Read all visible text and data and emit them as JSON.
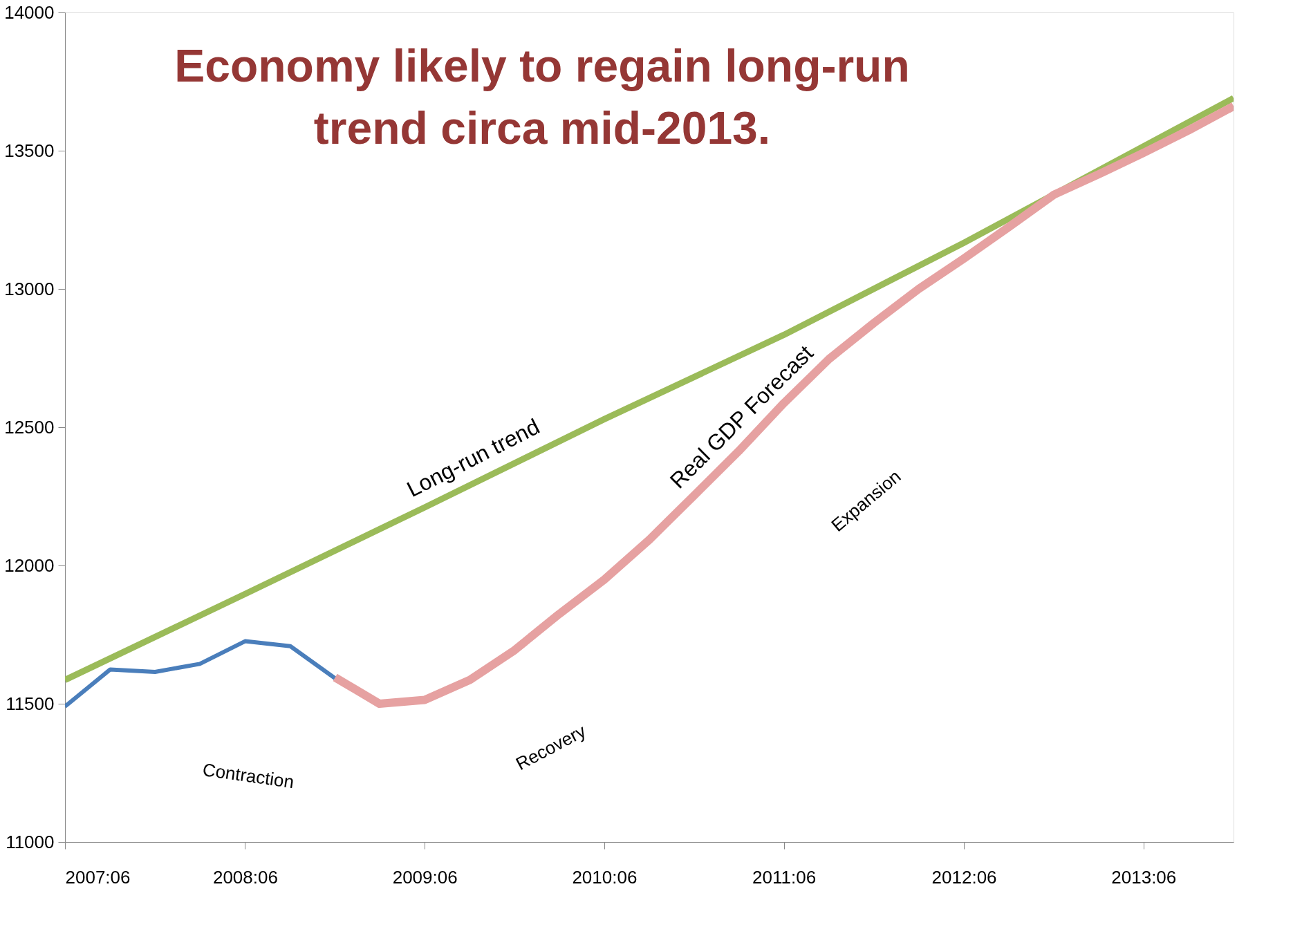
{
  "chart_data": {
    "type": "line",
    "title": "Economy likely to regain long-run\ntrend circa mid-2013.",
    "xlim": [
      "2007-06",
      "2013-12"
    ],
    "ylim": [
      11000,
      14000
    ],
    "xticks": [
      {
        "value": "2007-06",
        "label": "2007:06"
      },
      {
        "value": "2008-06",
        "label": "2008:06"
      },
      {
        "value": "2009-06",
        "label": "2009:06"
      },
      {
        "value": "2010-06",
        "label": "2010:06"
      },
      {
        "value": "2011-06",
        "label": "2011:06"
      },
      {
        "value": "2012-06",
        "label": "2012:06"
      },
      {
        "value": "2013-06",
        "label": "2013:06"
      }
    ],
    "yticks": [
      11000,
      11500,
      12000,
      12500,
      13000,
      13500,
      14000
    ],
    "series": [
      {
        "name": "Long-run trend",
        "color": "#9bbb59",
        "x": [
          "2007-06",
          "2008-06",
          "2009-06",
          "2010-06",
          "2011-06",
          "2012-06",
          "2013-06",
          "2013-12"
        ],
        "values": [
          11586,
          11897,
          12210,
          12529,
          12834,
          13167,
          13516,
          13690
        ]
      },
      {
        "color": "#4a7ebb",
        "x": [
          "2007-06",
          "2007-09",
          "2007-12",
          "2008-03",
          "2008-06",
          "2008-09",
          "2008-12"
        ],
        "values": [
          11490,
          11624,
          11615,
          11644,
          11726,
          11708,
          11592
        ]
      },
      {
        "name": "Real GDP Forecast",
        "color": "#e6a1a1",
        "x": [
          "2008-12",
          "2009-03",
          "2009-06",
          "2009-09",
          "2009-12",
          "2010-03",
          "2010-06",
          "2010-09",
          "2010-12",
          "2011-03",
          "2011-06",
          "2011-09",
          "2011-12",
          "2012-03",
          "2012-06",
          "2012-09",
          "2012-12",
          "2013-03",
          "2013-06",
          "2013-09",
          "2013-12"
        ],
        "values": [
          11595,
          11500,
          11514,
          11586,
          11694,
          11824,
          11949,
          12094,
          12254,
          12413,
          12587,
          12747,
          12877,
          13000,
          13110,
          13225,
          13341,
          13414,
          13492,
          13574,
          13661
        ]
      }
    ],
    "annotations": [
      "Contraction",
      "Recovery",
      "Expansion"
    ]
  }
}
